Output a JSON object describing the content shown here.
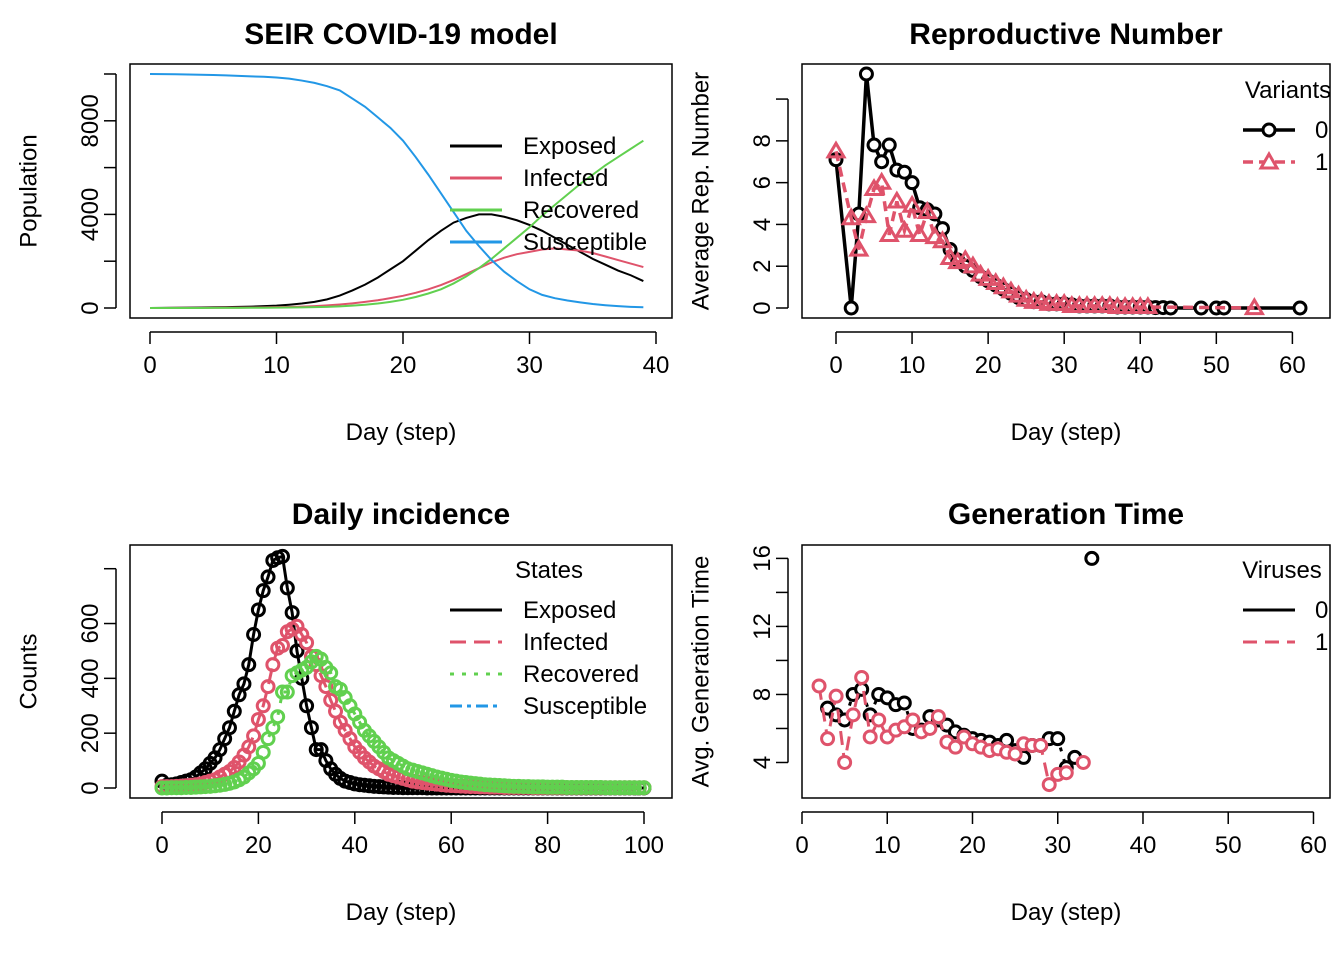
{
  "colors": {
    "exposed": "#000000",
    "infected": "#DF536B",
    "recovered": "#61D04F",
    "susceptible": "#2297E6",
    "variant0": "#000000",
    "variant1": "#DF536B"
  },
  "chart_data": [
    {
      "id": "seir",
      "type": "line",
      "title": "SEIR COVID-19 model",
      "xlabel": "Day (step)",
      "ylabel": "Population",
      "xlim": [
        0,
        40
      ],
      "ylim": [
        0,
        10000
      ],
      "xticks": [
        0,
        10,
        20,
        30,
        40
      ],
      "yticks": [
        0,
        4000,
        8000
      ],
      "ytick_marks": [
        0,
        2000,
        4000,
        6000,
        8000,
        10000
      ],
      "legend": {
        "position": "right",
        "title": "",
        "entries": [
          "Exposed",
          "Infected",
          "Recovered",
          "Susceptible"
        ]
      },
      "x": [
        0,
        1,
        2,
        3,
        4,
        5,
        6,
        7,
        8,
        9,
        10,
        11,
        12,
        13,
        14,
        15,
        16,
        17,
        18,
        19,
        20,
        21,
        22,
        23,
        24,
        25,
        26,
        27,
        28,
        29,
        30,
        31,
        32,
        33,
        34,
        35,
        36,
        37,
        38,
        39
      ],
      "series": [
        {
          "name": "Exposed",
          "color": "#000000",
          "values": [
            0,
            5,
            10,
            15,
            20,
            30,
            40,
            50,
            60,
            80,
            100,
            140,
            190,
            260,
            370,
            530,
            750,
            1000,
            1300,
            1650,
            2000,
            2450,
            2900,
            3300,
            3650,
            3850,
            4000,
            4000,
            3900,
            3750,
            3550,
            3300,
            3000,
            2700,
            2400,
            2100,
            1850,
            1600,
            1400,
            1150
          ]
        },
        {
          "name": "Infected",
          "color": "#DF536B",
          "values": [
            0,
            2,
            4,
            6,
            8,
            10,
            14,
            18,
            22,
            28,
            35,
            45,
            60,
            80,
            110,
            150,
            200,
            260,
            330,
            420,
            520,
            650,
            800,
            980,
            1200,
            1450,
            1700,
            1950,
            2150,
            2300,
            2400,
            2500,
            2550,
            2500,
            2450,
            2350,
            2200,
            2050,
            1900,
            1750
          ]
        },
        {
          "name": "Recovered",
          "color": "#61D04F",
          "values": [
            0,
            0,
            0,
            1,
            2,
            3,
            5,
            7,
            9,
            12,
            15,
            20,
            28,
            38,
            50,
            70,
            100,
            140,
            190,
            260,
            350,
            470,
            620,
            800,
            1050,
            1350,
            1700,
            2100,
            2550,
            3000,
            3450,
            3950,
            4400,
            4850,
            5300,
            5700,
            6100,
            6450,
            6800,
            7150
          ]
        },
        {
          "name": "Susceptible",
          "color": "#2297E6",
          "values": [
            10000,
            9995,
            9990,
            9980,
            9970,
            9955,
            9940,
            9920,
            9900,
            9880,
            9850,
            9800,
            9720,
            9620,
            9480,
            9300,
            8950,
            8600,
            8150,
            7700,
            7150,
            6450,
            5700,
            4900,
            4100,
            3300,
            2650,
            2050,
            1550,
            1150,
            800,
            560,
            420,
            320,
            240,
            170,
            120,
            80,
            50,
            30
          ]
        }
      ]
    },
    {
      "id": "repnum",
      "type": "line",
      "title": "Reproductive Number",
      "xlabel": "Day (step)",
      "ylabel": "Average Rep. Number",
      "xlim": [
        0,
        61
      ],
      "ylim": [
        0,
        11.2
      ],
      "xticks": [
        0,
        10,
        20,
        30,
        40,
        50,
        60
      ],
      "yticks": [
        0,
        2,
        4,
        6,
        8
      ],
      "ytick_marks": [
        0,
        2,
        4,
        6,
        8,
        10
      ],
      "legend": {
        "position": "top-right",
        "title": "Variants",
        "entries": [
          "0",
          "1"
        ]
      },
      "series": [
        {
          "name": "0",
          "color": "#000000",
          "marker": "circle",
          "x": [
            0,
            2,
            3,
            4,
            5,
            6,
            7,
            8,
            9,
            10,
            11,
            12,
            13,
            14,
            15,
            16,
            17,
            18,
            19,
            20,
            21,
            22,
            23,
            24,
            25,
            26,
            27,
            28,
            29,
            30,
            31,
            32,
            33,
            34,
            35,
            36,
            37,
            38,
            39,
            40,
            41,
            42,
            43,
            44,
            48,
            50,
            51,
            61
          ],
          "values": [
            7.1,
            0,
            4.5,
            11.2,
            7.8,
            7.0,
            7.8,
            6.6,
            6.5,
            6.0,
            4.8,
            4.7,
            4.5,
            3.8,
            2.8,
            2.3,
            2.0,
            1.8,
            1.5,
            1.3,
            1.1,
            0.9,
            0.7,
            0.5,
            0.4,
            0.3,
            0.3,
            0.2,
            0.2,
            0.2,
            0.15,
            0.1,
            0.1,
            0.1,
            0.1,
            0.1,
            0.05,
            0.05,
            0.05,
            0.05,
            0.05,
            0.02,
            0.02,
            0,
            0,
            0,
            0,
            0
          ]
        },
        {
          "name": "1",
          "color": "#DF536B",
          "marker": "triangle",
          "x": [
            0,
            2,
            3,
            4,
            5,
            6,
            7,
            8,
            9,
            10,
            11,
            12,
            13,
            14,
            15,
            16,
            17,
            18,
            19,
            20,
            21,
            22,
            23,
            24,
            25,
            26,
            27,
            28,
            29,
            30,
            31,
            32,
            33,
            34,
            35,
            36,
            37,
            38,
            39,
            40,
            41,
            55
          ],
          "values": [
            7.5,
            4.3,
            2.8,
            4.4,
            5.7,
            6.0,
            3.5,
            5.1,
            3.7,
            4.9,
            3.5,
            4.6,
            3.4,
            3.2,
            2.4,
            2.2,
            2.3,
            2.0,
            1.6,
            1.4,
            1.2,
            1.0,
            0.8,
            0.6,
            0.4,
            0.3,
            0.3,
            0.2,
            0.2,
            0.2,
            0.1,
            0.1,
            0.1,
            0.1,
            0.1,
            0.1,
            0.05,
            0.05,
            0.05,
            0.05,
            0.05,
            0
          ]
        }
      ]
    },
    {
      "id": "incidence",
      "type": "scatter",
      "title": "Daily incidence",
      "xlabel": "Day (step)",
      "ylabel": "Counts",
      "xlim": [
        0,
        100
      ],
      "ylim": [
        0,
        850
      ],
      "xticks": [
        0,
        20,
        40,
        60,
        80,
        100
      ],
      "yticks": [
        0,
        200,
        400,
        600
      ],
      "ytick_marks": [
        0,
        200,
        400,
        600,
        800
      ],
      "legend": {
        "position": "right",
        "title": "States",
        "entries": [
          "Exposed",
          "Infected",
          "Recovered",
          "Susceptible"
        ]
      },
      "series": [
        {
          "name": "Exposed",
          "color": "#000000",
          "x_start": 0,
          "values": [
            25,
            10,
            12,
            15,
            20,
            25,
            30,
            40,
            55,
            70,
            90,
            110,
            140,
            180,
            220,
            280,
            340,
            380,
            450,
            560,
            650,
            720,
            770,
            830,
            840,
            845,
            730,
            640,
            500,
            400,
            300,
            220,
            140,
            140,
            100,
            70,
            50,
            35,
            25,
            20,
            15,
            12,
            10,
            8,
            6,
            5,
            4,
            3,
            2,
            2,
            1,
            1,
            1,
            1,
            1,
            0,
            0,
            0,
            0,
            0,
            0,
            0,
            0,
            0,
            0,
            0,
            0,
            0,
            0,
            0,
            0,
            0,
            0,
            0,
            0,
            0,
            0,
            0,
            0,
            0,
            0,
            0,
            0,
            0,
            0,
            0,
            0,
            0,
            0,
            0,
            0,
            0,
            0,
            0,
            0,
            0,
            0,
            0,
            0,
            0,
            0
          ]
        },
        {
          "name": "Infected",
          "color": "#DF536B",
          "x_start": 0,
          "values": [
            5,
            5,
            5,
            6,
            7,
            8,
            10,
            12,
            15,
            20,
            25,
            30,
            40,
            50,
            60,
            75,
            95,
            120,
            150,
            190,
            250,
            300,
            370,
            450,
            510,
            520,
            570,
            580,
            590,
            560,
            530,
            480,
            450,
            410,
            370,
            320,
            280,
            240,
            210,
            180,
            150,
            130,
            110,
            95,
            80,
            70,
            60,
            50,
            45,
            40,
            35,
            30,
            25,
            22,
            20,
            18,
            16,
            14,
            12,
            10,
            9,
            8,
            7,
            6,
            5,
            5,
            4,
            4,
            3,
            3,
            3,
            2,
            2,
            2,
            2,
            2,
            2,
            1,
            1,
            1,
            1,
            1,
            1,
            1,
            1,
            1,
            1,
            1,
            1,
            1,
            1,
            1,
            1,
            1,
            1,
            1,
            1,
            1,
            1,
            1,
            1
          ]
        },
        {
          "name": "Recovered",
          "color": "#61D04F",
          "x_start": 0,
          "values": [
            0,
            0,
            1,
            1,
            1,
            2,
            2,
            3,
            4,
            5,
            6,
            8,
            10,
            13,
            17,
            22,
            30,
            40,
            55,
            70,
            90,
            130,
            180,
            220,
            260,
            350,
            350,
            410,
            420,
            430,
            440,
            460,
            480,
            470,
            440,
            420,
            370,
            360,
            330,
            300,
            270,
            240,
            210,
            190,
            170,
            150,
            130,
            110,
            100,
            90,
            80,
            70,
            65,
            60,
            55,
            50,
            45,
            40,
            36,
            32,
            28,
            25,
            22,
            20,
            18,
            16,
            14,
            12,
            11,
            10,
            9,
            8,
            7,
            6,
            6,
            5,
            5,
            4,
            4,
            4,
            3,
            3,
            3,
            3,
            2,
            2,
            2,
            2,
            2,
            2,
            2,
            2,
            1,
            1,
            1,
            1,
            1,
            1,
            1,
            1,
            1
          ]
        },
        {
          "name": "Susceptible",
          "color": "#2297E6",
          "x_start": 0,
          "values": []
        }
      ]
    },
    {
      "id": "gentime",
      "type": "scatter",
      "title": "Generation Time",
      "xlabel": "Day (step)",
      "ylabel": "Avg. Generation Time",
      "xlim": [
        0,
        61
      ],
      "ylim": [
        2.5,
        16.2
      ],
      "xticks": [
        0,
        10,
        20,
        30,
        40,
        50,
        60
      ],
      "yticks": [
        4,
        8,
        12,
        16
      ],
      "ytick_marks": [
        4,
        6,
        8,
        10,
        12,
        14,
        16
      ],
      "legend": {
        "position": "top-right",
        "title": "Viruses",
        "entries": [
          "0",
          "1"
        ]
      },
      "series": [
        {
          "name": "0",
          "color": "#000000",
          "x": [
            3,
            4,
            5,
            6,
            7,
            8,
            9,
            10,
            11,
            12,
            13,
            14,
            15,
            16,
            17,
            18,
            19,
            20,
            21,
            22,
            23,
            24,
            25,
            26,
            27,
            28,
            29,
            30,
            31,
            32,
            34
          ],
          "values": [
            7.2,
            6.8,
            6.5,
            8.0,
            8.3,
            6.8,
            8.0,
            7.8,
            7.4,
            7.5,
            6.0,
            5.9,
            6.7,
            6.5,
            6.2,
            5.8,
            5.6,
            5.4,
            5.3,
            5.2,
            5.0,
            5.3,
            4.7,
            4.3,
            5.0,
            5.0,
            5.4,
            5.4,
            3.7,
            4.3,
            16.0
          ]
        },
        {
          "name": "1",
          "color": "#DF536B",
          "x": [
            2,
            3,
            4,
            5,
            6,
            7,
            8,
            9,
            10,
            11,
            12,
            13,
            14,
            15,
            16,
            17,
            18,
            19,
            20,
            21,
            22,
            23,
            24,
            25,
            26,
            27,
            28,
            29,
            30,
            31,
            33
          ],
          "values": [
            8.5,
            5.4,
            7.9,
            4.0,
            6.8,
            9.0,
            5.5,
            6.5,
            5.5,
            5.9,
            6.1,
            6.5,
            5.8,
            6.0,
            6.7,
            5.2,
            4.9,
            5.5,
            5.1,
            4.9,
            4.7,
            4.8,
            4.6,
            4.5,
            5.1,
            5.0,
            5.0,
            2.7,
            3.3,
            3.4,
            4.0
          ]
        }
      ]
    }
  ]
}
